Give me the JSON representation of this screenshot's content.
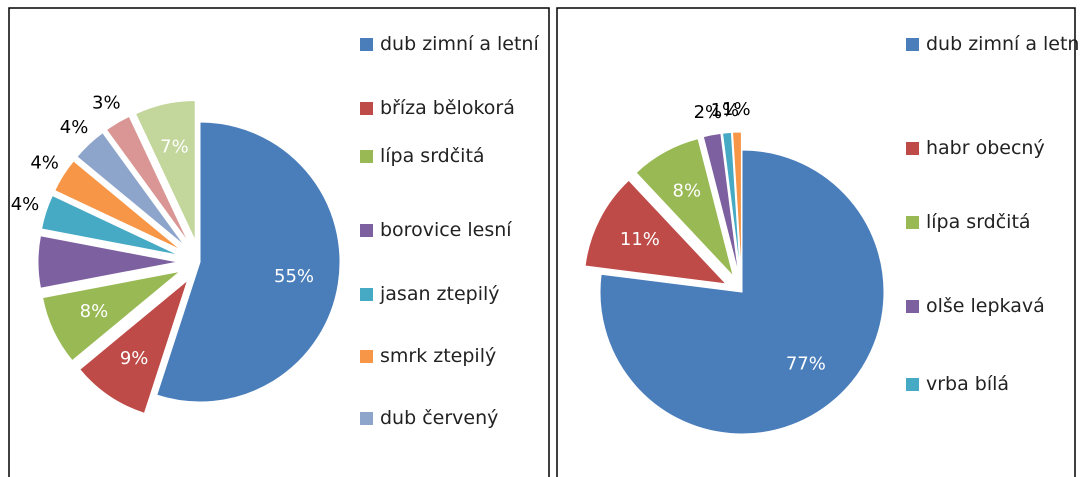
{
  "chart_data": [
    {
      "type": "pie",
      "categories": [
        "dub zimní a letní",
        "bříza bělokorá",
        "lípa srdčitá",
        "borovice lesní",
        "jasan ztepilý",
        "smrk ztepilý",
        "dub červený",
        null,
        null
      ],
      "values": [
        55,
        9,
        8,
        6,
        4,
        4,
        4,
        3,
        7
      ],
      "value_labels": [
        "55%",
        "9%",
        "8%",
        null,
        "4%",
        "4%",
        "4%",
        "3%",
        "7%"
      ],
      "colors": [
        "#4a7ebb",
        "#be4b48",
        "#98b954",
        "#7d60a0",
        "#46aac5",
        "#f79646",
        "#8ea5cb",
        "#d99694",
        "#c3d69b"
      ]
    },
    {
      "type": "pie",
      "categories": [
        "dub zimní a letní",
        "habr obecný",
        "lípa srdčitá",
        "olše lepkavá",
        "vrba bílá",
        null
      ],
      "values": [
        77,
        11,
        8,
        2,
        1,
        1
      ],
      "value_labels": [
        "77%",
        "11%",
        "8%",
        "2%",
        "1%",
        "1%"
      ],
      "colors": [
        "#4a7ebb",
        "#be4b48",
        "#98b954",
        "#7d60a0",
        "#46aac5",
        "#f79646"
      ]
    }
  ]
}
